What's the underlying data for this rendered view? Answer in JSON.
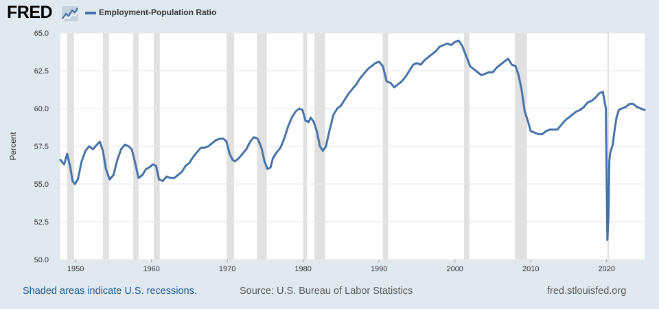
{
  "logo": {
    "text": "FRED",
    "icon": "fred-chart-logo-icon"
  },
  "legend": {
    "label": "Employment-Population Ratio",
    "color": "#4572a7"
  },
  "footer": {
    "recessions_note": "Shaded areas indicate U.S. recessions.",
    "source": "Source: U.S. Bureau of Labor Statistics",
    "url": "fred.stlouisfed.org"
  },
  "colors": {
    "background": "#e1e9f0",
    "plot_background": "#ffffff",
    "recession_shade": "#e1e1e1",
    "line": "#4572a7",
    "grid": "#e6e6e6"
  },
  "chart_data": {
    "type": "line",
    "title": "",
    "xlabel": "",
    "ylabel": "Percent",
    "xlim": [
      1948,
      2025
    ],
    "ylim": [
      50,
      65
    ],
    "grid": true,
    "legend_position": "top-left",
    "x_ticks": [
      "1950",
      "1960",
      "1970",
      "1980",
      "1990",
      "2000",
      "2010",
      "2020"
    ],
    "y_ticks": [
      "50.0",
      "52.5",
      "55.0",
      "57.5",
      "60.0",
      "62.5",
      "65.0"
    ],
    "recessions": [
      [
        1948.9,
        1949.8
      ],
      [
        1953.6,
        1954.4
      ],
      [
        1957.6,
        1958.3
      ],
      [
        1960.3,
        1961.1
      ],
      [
        1969.9,
        1970.9
      ],
      [
        1973.9,
        1975.2
      ],
      [
        1980.0,
        1980.5
      ],
      [
        1981.5,
        1982.9
      ],
      [
        1990.5,
        1991.2
      ],
      [
        2001.2,
        2001.9
      ],
      [
        2007.9,
        2009.5
      ],
      [
        2020.1,
        2020.3
      ]
    ],
    "series": [
      {
        "name": "Employment-Population Ratio",
        "color": "#4572a7",
        "x": [
          1948.0,
          1948.5,
          1948.9,
          1949.3,
          1949.6,
          1949.9,
          1950.3,
          1950.8,
          1951.3,
          1951.8,
          1952.3,
          1952.8,
          1953.2,
          1953.6,
          1954.0,
          1954.5,
          1955.0,
          1955.5,
          1956.0,
          1956.5,
          1957.0,
          1957.4,
          1957.9,
          1958.3,
          1958.8,
          1959.3,
          1959.7,
          1960.2,
          1960.6,
          1961.0,
          1961.5,
          1962.0,
          1962.5,
          1963.0,
          1963.5,
          1964.0,
          1964.5,
          1965.0,
          1965.5,
          1966.0,
          1966.5,
          1967.0,
          1967.5,
          1968.0,
          1968.5,
          1969.0,
          1969.5,
          1969.9,
          1970.3,
          1970.7,
          1971.0,
          1971.5,
          1972.0,
          1972.5,
          1973.0,
          1973.5,
          1974.0,
          1974.5,
          1974.9,
          1975.3,
          1975.7,
          1976.0,
          1976.5,
          1977.0,
          1977.5,
          1978.0,
          1978.5,
          1979.0,
          1979.5,
          1979.9,
          1980.3,
          1980.7,
          1981.0,
          1981.4,
          1981.8,
          1982.2,
          1982.6,
          1983.0,
          1983.5,
          1984.0,
          1984.5,
          1985.0,
          1985.5,
          1986.0,
          1986.5,
          1987.0,
          1987.5,
          1988.0,
          1988.5,
          1989.0,
          1989.5,
          1990.0,
          1990.5,
          1991.0,
          1991.5,
          1992.0,
          1992.5,
          1993.0,
          1993.5,
          1994.0,
          1994.5,
          1995.0,
          1995.5,
          1996.0,
          1996.5,
          1997.0,
          1997.5,
          1998.0,
          1998.5,
          1999.0,
          1999.5,
          2000.0,
          2000.5,
          2001.0,
          2001.3,
          2001.7,
          2002.0,
          2002.5,
          2003.0,
          2003.5,
          2004.0,
          2004.5,
          2005.0,
          2005.5,
          2006.0,
          2006.5,
          2007.0,
          2007.5,
          2008.0,
          2008.4,
          2008.8,
          2009.2,
          2009.6,
          2010.0,
          2010.5,
          2011.0,
          2011.5,
          2012.0,
          2012.5,
          2013.0,
          2013.5,
          2014.0,
          2014.5,
          2015.0,
          2015.5,
          2016.0,
          2016.5,
          2017.0,
          2017.5,
          2018.0,
          2018.5,
          2019.0,
          2019.5,
          2019.9,
          2020.1,
          2020.25,
          2020.35,
          2020.45,
          2020.6,
          2020.8,
          2021.0,
          2021.3,
          2021.6,
          2022.0,
          2022.5,
          2023.0,
          2023.5,
          2024.0,
          2024.5,
          2025.0
        ],
        "values": [
          56.6,
          56.3,
          57.0,
          56.1,
          55.2,
          55.0,
          55.3,
          56.5,
          57.2,
          57.5,
          57.3,
          57.6,
          57.8,
          57.2,
          56.0,
          55.3,
          55.6,
          56.6,
          57.3,
          57.6,
          57.5,
          57.3,
          56.3,
          55.4,
          55.6,
          56.0,
          56.1,
          56.3,
          56.2,
          55.3,
          55.2,
          55.5,
          55.4,
          55.4,
          55.6,
          55.8,
          56.2,
          56.4,
          56.8,
          57.1,
          57.4,
          57.4,
          57.5,
          57.7,
          57.9,
          58.0,
          58.0,
          57.8,
          57.0,
          56.6,
          56.5,
          56.7,
          57.0,
          57.3,
          57.8,
          58.1,
          58.0,
          57.4,
          56.5,
          56.0,
          56.1,
          56.7,
          57.1,
          57.4,
          58.0,
          58.8,
          59.4,
          59.8,
          60.0,
          59.9,
          59.2,
          59.1,
          59.4,
          59.1,
          58.5,
          57.5,
          57.2,
          57.5,
          58.6,
          59.6,
          60.0,
          60.2,
          60.6,
          61.0,
          61.3,
          61.6,
          62.0,
          62.3,
          62.6,
          62.8,
          63.0,
          63.1,
          62.8,
          61.8,
          61.7,
          61.4,
          61.6,
          61.8,
          62.1,
          62.5,
          62.9,
          63.0,
          62.9,
          63.2,
          63.4,
          63.6,
          63.8,
          64.1,
          64.2,
          64.3,
          64.2,
          64.4,
          64.5,
          64.1,
          63.7,
          63.2,
          62.8,
          62.6,
          62.4,
          62.2,
          62.3,
          62.4,
          62.4,
          62.7,
          62.9,
          63.1,
          63.3,
          62.9,
          62.8,
          62.2,
          61.2,
          59.8,
          59.2,
          58.5,
          58.4,
          58.3,
          58.3,
          58.5,
          58.6,
          58.6,
          58.6,
          58.9,
          59.2,
          59.4,
          59.6,
          59.8,
          59.9,
          60.1,
          60.4,
          60.5,
          60.7,
          61.0,
          61.1,
          60.0,
          51.3,
          53.0,
          56.5,
          57.0,
          57.3,
          57.6,
          58.4,
          59.4,
          59.9,
          60.0,
          60.1,
          60.3,
          60.3,
          60.1,
          60.0,
          59.9
        ]
      }
    ]
  }
}
